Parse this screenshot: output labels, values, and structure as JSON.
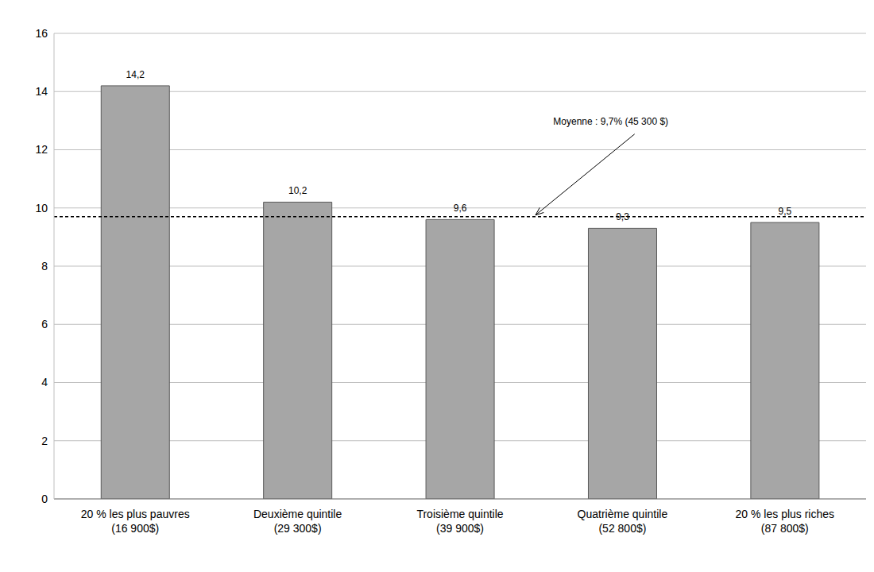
{
  "chart_data": {
    "type": "bar",
    "categories": [
      "20 % les plus pauvres\n(16 900$)",
      "Deuxième quintile\n(29 300$)",
      "Troisième quintile\n(39 900$)",
      "Quatrième quintile\n(52 800$)",
      "20 % les plus riches\n(87 800$)"
    ],
    "values": [
      14.2,
      10.2,
      9.6,
      9.3,
      9.5
    ],
    "value_labels": [
      "14,2",
      "10,2",
      "9,6",
      "9,3",
      "9,5"
    ],
    "data_labels": true,
    "color": "#a6a6a6",
    "ylim": [
      0,
      16
    ],
    "yticks": [
      0,
      2,
      4,
      6,
      8,
      10,
      12,
      14,
      16
    ],
    "grid": true,
    "annotations": [
      {
        "text": "Moyenne : 9,7% (45 300 $)",
        "y": 9.7
      }
    ]
  }
}
